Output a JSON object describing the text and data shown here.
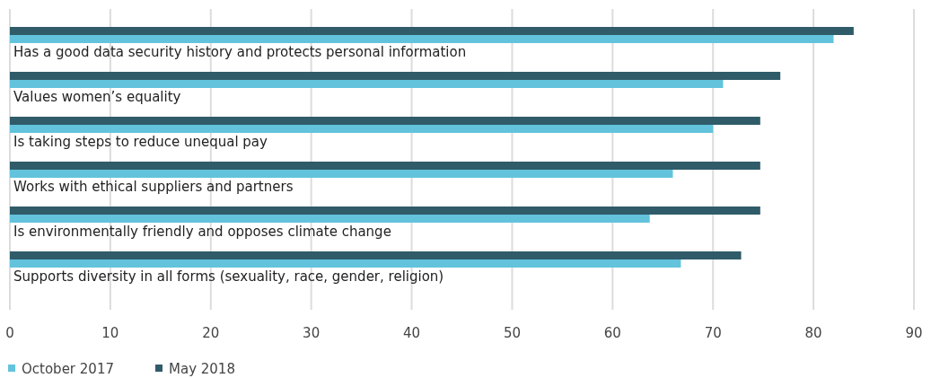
{
  "chart_data": {
    "type": "bar",
    "orientation": "horizontal",
    "categories": [
      "Has a good data security history and protects personal information",
      "Values women’s equality",
      "Is taking steps to reduce unequal pay",
      "Works with ethical suppliers and partners",
      "Is environmentally friendly and opposes climate change",
      "Supports diversity in all forms (sexuality, race, gender, religion)"
    ],
    "series": [
      {
        "name": "October 2017",
        "color": "#63c3dc",
        "values": [
          82,
          71,
          70,
          66,
          63.7,
          66.8
        ]
      },
      {
        "name": "May 2018",
        "color": "#305b69",
        "values": [
          84,
          76.7,
          74.7,
          74.7,
          74.7,
          72.8
        ]
      }
    ],
    "xlim": [
      0,
      90
    ],
    "xticks": [
      0,
      10,
      20,
      30,
      40,
      50,
      60,
      70,
      80,
      90
    ],
    "grid": "x",
    "legend": "bottom left"
  }
}
